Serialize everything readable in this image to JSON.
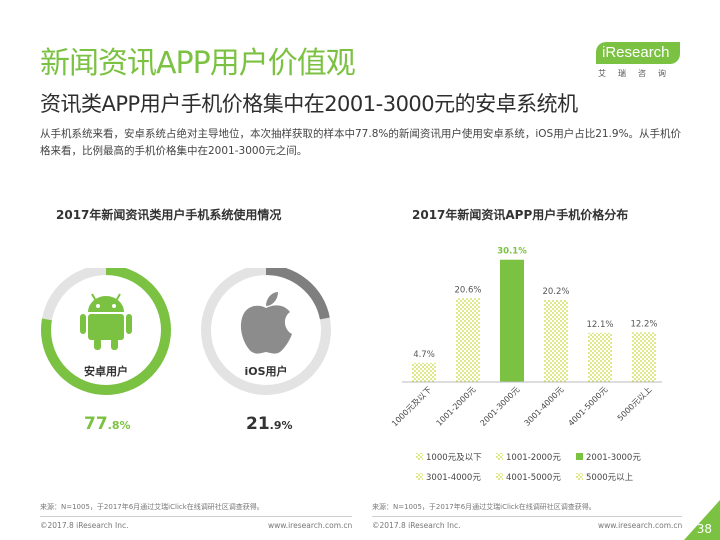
{
  "header": {
    "title": "新闻资讯APP用户价值观",
    "subtitle": "资讯类APP用户手机价格集中在2001-3000元的安卓系统机",
    "summary": "从手机系统来看，安卓系统占绝对主导地位，本次抽样获取的样本中77.8%的新闻资讯用户使用安卓系统，iOS用户占比21.9%。从手机价格来看，比例最高的手机价格集中在2001-3000元之间。"
  },
  "logo": {
    "text": "iResearch",
    "sub": "艾瑞咨询"
  },
  "left_panel": {
    "title": "2017年新闻资讯类用户手机系统使用情况",
    "android": {
      "label": "安卓用户",
      "value": 77.8,
      "pct_int": "77",
      "pct_dec": ".8%",
      "icon": "android-icon",
      "color": "#7cc242"
    },
    "ios": {
      "label": "iOS用户",
      "value": 21.9,
      "pct_int": "21",
      "pct_dec": ".9%",
      "icon": "apple-icon",
      "color": "#7f7f7f"
    },
    "source": "来源：N=1005，于2017年6月通过艾瑞iClick在线调研社区调查获得。",
    "copyright": "©2017.8 iResearch Inc.",
    "url": "www.iresearch.com.cn"
  },
  "right_panel": {
    "source": "来源：N=1005，于2017年6月通过艾瑞iClick在线调研社区调查获得。",
    "copyright": "©2017.8 iResearch Inc.",
    "url": "www.iresearch.com.cn"
  },
  "page_number": "38",
  "chart_data": {
    "type": "bar",
    "title": "2017年新闻资讯APP用户手机价格分布",
    "categories": [
      "1000元及以下",
      "1001-2000元",
      "2001-3000元",
      "3001-4000元",
      "4001-5000元",
      "5000元以上"
    ],
    "values": [
      4.7,
      20.6,
      30.1,
      20.2,
      12.1,
      12.2
    ],
    "labels": [
      "4.7%",
      "20.6%",
      "30.1%",
      "20.2%",
      "12.1%",
      "12.2%"
    ],
    "highlight_index": 2,
    "ylim": [
      0,
      32
    ],
    "colors": {
      "hatch": "#d4de3f",
      "highlight": "#7cc242",
      "label_highlight": "#7cc242",
      "label": "#555555"
    },
    "legend": [
      "1000元及以下",
      "1001-2000元",
      "2001-3000元",
      "3001-4000元",
      "4001-5000元",
      "5000元以上"
    ],
    "legend_position": "bottom"
  }
}
